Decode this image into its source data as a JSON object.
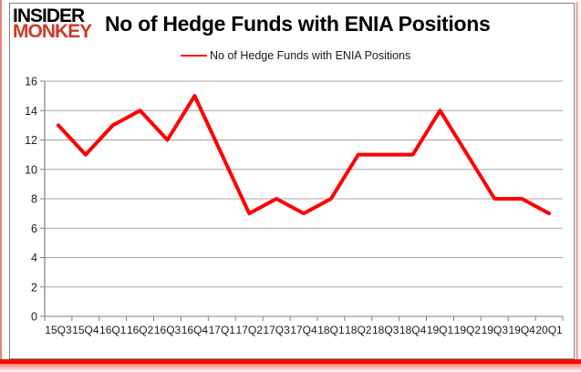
{
  "logo": {
    "line1": "INSIDER",
    "line2": "MONKEY",
    "monkey_color": "#cf3a28"
  },
  "header": {
    "title": "No of Hedge Funds with ENIA Positions"
  },
  "legend": {
    "label": "No of Hedge Funds with ENIA Positions",
    "line_color": "#ff0000"
  },
  "chart_data": {
    "type": "line",
    "title": "No of Hedge Funds with ENIA Positions",
    "categories": [
      "15Q3",
      "15Q4",
      "16Q1",
      "16Q2",
      "16Q3",
      "16Q4",
      "17Q1",
      "17Q2",
      "17Q3",
      "17Q4",
      "18Q1",
      "18Q2",
      "18Q3",
      "18Q4",
      "19Q1",
      "19Q2",
      "19Q3",
      "19Q4",
      "20Q1"
    ],
    "series": [
      {
        "name": "No of Hedge Funds with ENIA Positions",
        "color": "#ff0000",
        "values": [
          13,
          11,
          13,
          14,
          12,
          15,
          11,
          7,
          8,
          7,
          8,
          11,
          11,
          11,
          14,
          11,
          8,
          8,
          7
        ]
      }
    ],
    "xlabel": "",
    "ylabel": "",
    "ylim": [
      0,
      16
    ],
    "ytick_step": 2,
    "grid": "horizontal-only",
    "legend_position": "top-center",
    "gridline_color": "#a6a6a6",
    "axis_color": "#808080",
    "label_color": "#1a1a1a",
    "line_width": 4
  },
  "frame": {
    "border_color": "#848484",
    "shadow_solid": "#f10e00",
    "shadow_pink": "#f2b3a9"
  }
}
